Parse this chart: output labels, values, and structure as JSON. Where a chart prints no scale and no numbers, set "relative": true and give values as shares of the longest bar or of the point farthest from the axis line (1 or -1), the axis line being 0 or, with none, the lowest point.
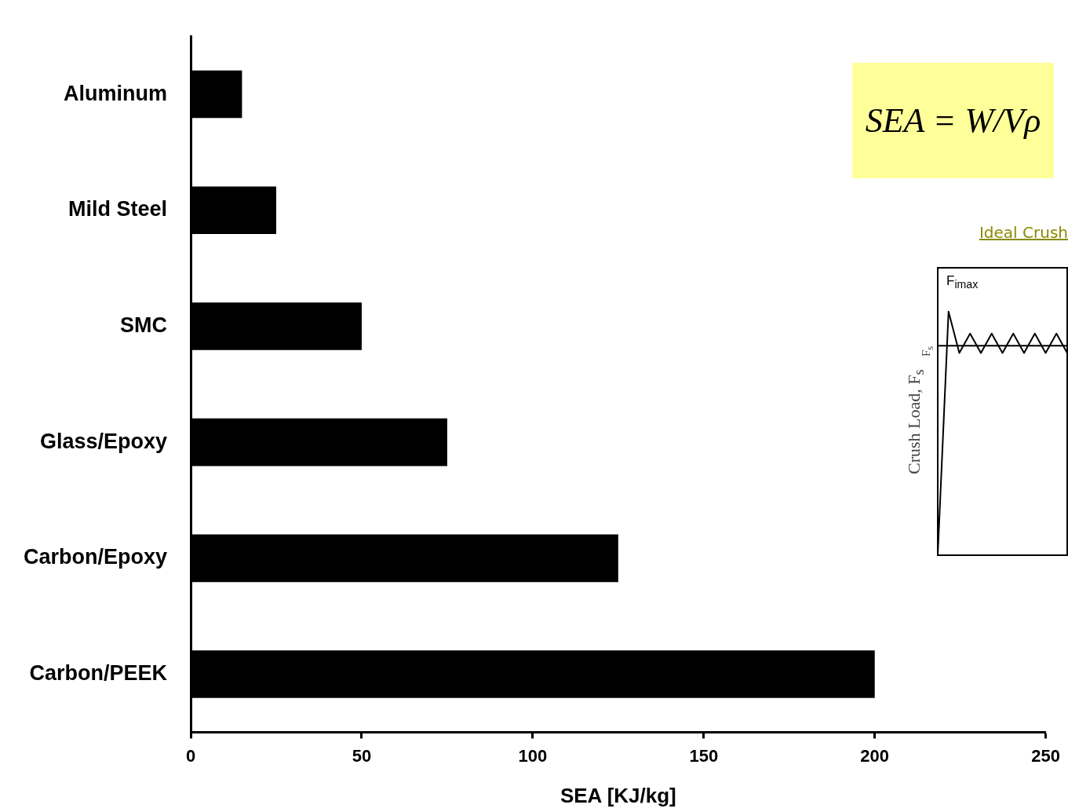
{
  "chart_data": [
    {
      "type": "bar",
      "orientation": "horizontal",
      "xlabel": "SEA [KJ/kg]",
      "categories": [
        "Aluminum",
        "Mild Steel",
        "SMC",
        "Glass/Epoxy",
        "Carbon/Epoxy",
        "Carbon/PEEK"
      ],
      "values": [
        15,
        25,
        50,
        75,
        125,
        200
      ],
      "color": "#000000",
      "xlim": [
        0,
        250
      ],
      "xticks": [
        0,
        50,
        100,
        150,
        200,
        250
      ],
      "grid": false,
      "legend": false,
      "annotations": [
        "SEA = W/Vρ"
      ]
    },
    {
      "type": "line",
      "relative": true,
      "title": "Ideal Crush",
      "ylabel": "Crush Load, F$_{s}$",
      "categories": [
        null,
        null,
        null,
        null,
        null,
        null,
        null,
        null,
        null,
        null,
        null,
        null,
        null
      ],
      "values": [
        0,
        1,
        0.83,
        0.91,
        0.83,
        0.91,
        0.83,
        0.91,
        0.83,
        0.91,
        0.83,
        0.91,
        0.83
      ],
      "color": "#000000",
      "ref_lines": [
        {
          "axis": "y",
          "value": 0.86,
          "label": "F$_{s}$"
        }
      ],
      "annotations": [
        "F$_{imax}$"
      ]
    }
  ]
}
